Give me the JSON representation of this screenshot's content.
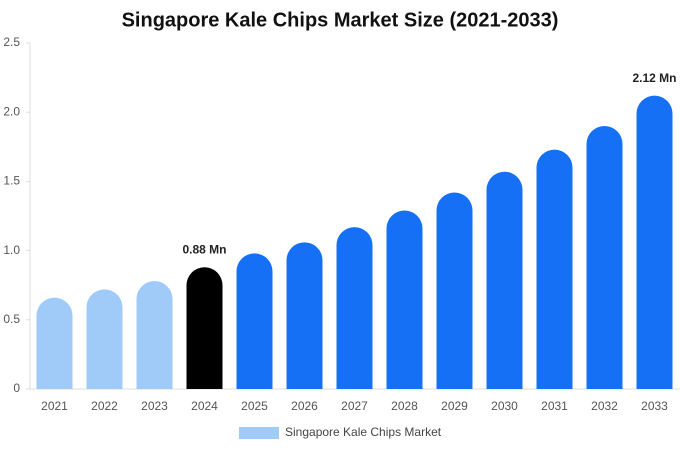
{
  "chart_data": {
    "type": "bar",
    "title": "Singapore Kale Chips Market Size (2021-2033)",
    "categories": [
      "2021",
      "2022",
      "2023",
      "2024",
      "2025",
      "2026",
      "2027",
      "2028",
      "2029",
      "2030",
      "2031",
      "2032",
      "2033"
    ],
    "series": [
      {
        "name": "Singapore Kale Chips Market",
        "color": "#a0cbf8",
        "colors": [
          "#a0cbf8",
          "#a0cbf8",
          "#a0cbf8",
          "#000000",
          "#1570f5",
          "#1570f5",
          "#1570f5",
          "#1570f5",
          "#1570f5",
          "#1570f5",
          "#1570f5",
          "#1570f5",
          "#1570f5"
        ],
        "values": [
          0.66,
          0.72,
          0.78,
          0.88,
          0.98,
          1.06,
          1.17,
          1.29,
          1.42,
          1.57,
          1.73,
          1.9,
          2.12
        ],
        "value_labels": [
          null,
          null,
          null,
          "0.88 Mn",
          null,
          null,
          null,
          null,
          null,
          null,
          null,
          null,
          "2.12 Mn"
        ]
      }
    ],
    "ylim": [
      0,
      2.5
    ],
    "yticks": [
      0,
      0.5,
      {
        "value": 1,
        "label": "1.0"
      },
      {
        "value": 1.5,
        "label": "1.5"
      },
      {
        "value": 2,
        "label": "2.0"
      },
      {
        "value": 2.5,
        "label": "2.5"
      }
    ],
    "grid": false
  }
}
